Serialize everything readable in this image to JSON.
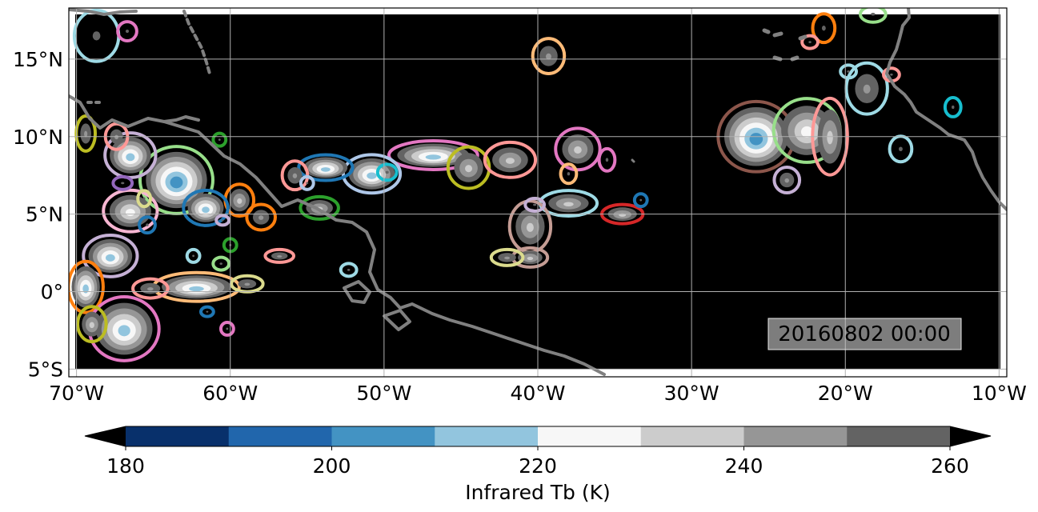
{
  "map": {
    "extent": {
      "lon_min": -70.5,
      "lon_max": -9.5,
      "lat_min": -5.5,
      "lat_max": 18.3
    },
    "lon_ticks": [
      {
        "value": -70,
        "label": "70°W"
      },
      {
        "value": -60,
        "label": "60°W"
      },
      {
        "value": -50,
        "label": "50°W"
      },
      {
        "value": -40,
        "label": "40°W"
      },
      {
        "value": -30,
        "label": "30°W"
      },
      {
        "value": -20,
        "label": "20°W"
      },
      {
        "value": -10,
        "label": "10°W"
      }
    ],
    "lat_ticks": [
      {
        "value": 15,
        "label": "15°N"
      },
      {
        "value": 10,
        "label": "10°N"
      },
      {
        "value": 5,
        "label": "5°N"
      },
      {
        "value": 0,
        "label": "0°"
      },
      {
        "value": -5,
        "label": "5°S"
      }
    ],
    "grid": true,
    "background_color": "#000000",
    "coastline_color": "#808080",
    "timestamp": "20160802 00:00"
  },
  "colorbar": {
    "label": "Infrared Tb (K)",
    "min": 180,
    "max": 260,
    "step": 10,
    "extend": "both",
    "tick_labels": [
      {
        "value": 180,
        "label": "180"
      },
      {
        "value": 200,
        "label": "200"
      },
      {
        "value": 220,
        "label": "220"
      },
      {
        "value": 240,
        "label": "240"
      },
      {
        "value": 260,
        "label": "260"
      }
    ],
    "colors": [
      "#08306b",
      "#2166ac",
      "#4393c3",
      "#92c5de",
      "#f7f7f7",
      "#cccccc",
      "#969696",
      "#636363"
    ],
    "under_color": "#000000",
    "over_color": "#000000"
  },
  "cloud_systems": [
    {
      "lon": -25.8,
      "lat": 10.0,
      "rx": 2.4,
      "ry": 2.2,
      "min_tb": 200,
      "outline": "#8c564b"
    },
    {
      "lon": -22.5,
      "lat": 10.4,
      "rx": 2.1,
      "ry": 2.0,
      "min_tb": 220,
      "outline": "#98df8a"
    },
    {
      "lon": -21.0,
      "lat": 10.0,
      "rx": 1.1,
      "ry": 2.4,
      "min_tb": 230,
      "outline": "#ff9896"
    },
    {
      "lon": -18.6,
      "lat": 13.1,
      "rx": 1.3,
      "ry": 1.6,
      "min_tb": 240,
      "outline": "#9edae5"
    },
    {
      "lon": -23.8,
      "lat": 7.2,
      "rx": 0.8,
      "ry": 0.8,
      "min_tb": 240,
      "outline": "#c5b0d5"
    },
    {
      "lon": -13.0,
      "lat": 11.9,
      "rx": 0.5,
      "ry": 0.6,
      "min_tb": 250,
      "outline": "#17becf"
    },
    {
      "lon": -16.4,
      "lat": 9.2,
      "rx": 0.7,
      "ry": 0.8,
      "min_tb": 250,
      "outline": "#9edae5"
    },
    {
      "lon": -21.4,
      "lat": 17.0,
      "rx": 0.7,
      "ry": 0.9,
      "min_tb": 250,
      "outline": "#ff7f0e"
    },
    {
      "lon": -18.2,
      "lat": 17.9,
      "rx": 0.8,
      "ry": 0.5,
      "min_tb": 250,
      "outline": "#98df8a"
    },
    {
      "lon": -22.3,
      "lat": 16.1,
      "rx": 0.5,
      "ry": 0.4,
      "min_tb": 250,
      "outline": "#ff9896"
    },
    {
      "lon": -19.8,
      "lat": 14.2,
      "rx": 0.5,
      "ry": 0.4,
      "min_tb": 250,
      "outline": "#9edae5"
    },
    {
      "lon": -17.0,
      "lat": 14.0,
      "rx": 0.5,
      "ry": 0.4,
      "min_tb": 250,
      "outline": "#ff9896"
    },
    {
      "lon": -46.8,
      "lat": 8.8,
      "rx": 2.8,
      "ry": 0.9,
      "min_tb": 210,
      "outline": "#e377c2"
    },
    {
      "lon": -50.8,
      "lat": 7.6,
      "rx": 1.8,
      "ry": 1.2,
      "min_tb": 210,
      "outline": "#aec7e8"
    },
    {
      "lon": -53.8,
      "lat": 8.0,
      "rx": 1.7,
      "ry": 0.8,
      "min_tb": 210,
      "outline": "#1f77b4"
    },
    {
      "lon": -44.5,
      "lat": 8.0,
      "rx": 1.3,
      "ry": 1.3,
      "min_tb": 230,
      "outline": "#bcbd22"
    },
    {
      "lon": -41.8,
      "lat": 8.5,
      "rx": 1.6,
      "ry": 1.1,
      "min_tb": 230,
      "outline": "#ff9896"
    },
    {
      "lon": -37.4,
      "lat": 9.2,
      "rx": 1.4,
      "ry": 1.3,
      "min_tb": 230,
      "outline": "#e377c2"
    },
    {
      "lon": -38.0,
      "lat": 5.7,
      "rx": 1.8,
      "ry": 0.8,
      "min_tb": 230,
      "outline": "#9edae5"
    },
    {
      "lon": -34.5,
      "lat": 5.0,
      "rx": 1.3,
      "ry": 0.6,
      "min_tb": 230,
      "outline": "#d62728"
    },
    {
      "lon": -40.5,
      "lat": 4.2,
      "rx": 1.3,
      "ry": 1.6,
      "min_tb": 230,
      "outline": "#c49c94"
    },
    {
      "lon": -40.5,
      "lat": 2.2,
      "rx": 1.1,
      "ry": 0.6,
      "min_tb": 230,
      "outline": "#c49c94"
    },
    {
      "lon": -42.0,
      "lat": 2.2,
      "rx": 1.0,
      "ry": 0.5,
      "min_tb": 240,
      "outline": "#dbdb8d"
    },
    {
      "lon": -54.2,
      "lat": 5.4,
      "rx": 1.2,
      "ry": 0.7,
      "min_tb": 230,
      "outline": "#2ca02c"
    },
    {
      "lon": -55.8,
      "lat": 7.5,
      "rx": 0.8,
      "ry": 0.9,
      "min_tb": 240,
      "outline": "#ff9896"
    },
    {
      "lon": -59.4,
      "lat": 5.9,
      "rx": 0.9,
      "ry": 1.0,
      "min_tb": 230,
      "outline": "#ff7f0e"
    },
    {
      "lon": -58.0,
      "lat": 4.8,
      "rx": 0.9,
      "ry": 0.8,
      "min_tb": 240,
      "outline": "#ff7f0e"
    },
    {
      "lon": -63.5,
      "lat": 7.2,
      "rx": 2.3,
      "ry": 2.1,
      "min_tb": 200,
      "outline": "#98df8a"
    },
    {
      "lon": -61.6,
      "lat": 5.4,
      "rx": 1.4,
      "ry": 1.1,
      "min_tb": 210,
      "outline": "#1f77b4"
    },
    {
      "lon": -66.5,
      "lat": 8.8,
      "rx": 1.6,
      "ry": 1.4,
      "min_tb": 210,
      "outline": "#c5b0d5"
    },
    {
      "lon": -67.4,
      "lat": 10.0,
      "rx": 0.7,
      "ry": 0.8,
      "min_tb": 240,
      "outline": "#ff9896"
    },
    {
      "lon": -69.4,
      "lat": 10.2,
      "rx": 0.6,
      "ry": 1.1,
      "min_tb": 240,
      "outline": "#bcbd22"
    },
    {
      "lon": -66.5,
      "lat": 5.2,
      "rx": 1.7,
      "ry": 1.3,
      "min_tb": 220,
      "outline": "#f7b6d2"
    },
    {
      "lon": -67.8,
      "lat": 2.3,
      "rx": 1.7,
      "ry": 1.3,
      "min_tb": 210,
      "outline": "#c5b0d5"
    },
    {
      "lon": -69.4,
      "lat": 0.3,
      "rx": 1.1,
      "ry": 1.6,
      "min_tb": 210,
      "outline": "#ff7f0e"
    },
    {
      "lon": -66.9,
      "lat": -2.4,
      "rx": 2.2,
      "ry": 2.0,
      "min_tb": 210,
      "outline": "#e377c2"
    },
    {
      "lon": -69.0,
      "lat": -2.1,
      "rx": 0.9,
      "ry": 1.1,
      "min_tb": 230,
      "outline": "#bcbd22"
    },
    {
      "lon": -62.2,
      "lat": 0.3,
      "rx": 2.7,
      "ry": 0.9,
      "min_tb": 210,
      "outline": "#ffbb78"
    },
    {
      "lon": -58.9,
      "lat": 0.5,
      "rx": 1.0,
      "ry": 0.5,
      "min_tb": 240,
      "outline": "#dbdb8d"
    },
    {
      "lon": -65.2,
      "lat": 0.2,
      "rx": 1.1,
      "ry": 0.6,
      "min_tb": 240,
      "outline": "#ff9896"
    },
    {
      "lon": -56.8,
      "lat": 2.3,
      "rx": 0.9,
      "ry": 0.4,
      "min_tb": 240,
      "outline": "#ff9896"
    },
    {
      "lon": -39.3,
      "lat": 15.2,
      "rx": 1.0,
      "ry": 1.1,
      "min_tb": 240,
      "outline": "#ffbb78"
    },
    {
      "lon": -68.7,
      "lat": 16.5,
      "rx": 1.4,
      "ry": 1.6,
      "min_tb": 250,
      "outline": "#9edae5"
    },
    {
      "lon": -66.7,
      "lat": 16.8,
      "rx": 0.6,
      "ry": 0.6,
      "min_tb": 250,
      "outline": "#e377c2"
    },
    {
      "lon": -38.0,
      "lat": 7.6,
      "rx": 0.5,
      "ry": 0.6,
      "min_tb": 250,
      "outline": "#ffbb78"
    },
    {
      "lon": -35.5,
      "lat": 8.5,
      "rx": 0.5,
      "ry": 0.7,
      "min_tb": 250,
      "outline": "#e377c2"
    },
    {
      "lon": -33.3,
      "lat": 5.9,
      "rx": 0.4,
      "ry": 0.4,
      "min_tb": 250,
      "outline": "#1f77b4"
    },
    {
      "lon": -49.8,
      "lat": 7.7,
      "rx": 0.6,
      "ry": 0.5,
      "min_tb": 250,
      "outline": "#17becf"
    },
    {
      "lon": -40.2,
      "lat": 5.6,
      "rx": 0.6,
      "ry": 0.4,
      "min_tb": 250,
      "outline": "#c5b0d5"
    },
    {
      "lon": -52.3,
      "lat": 1.4,
      "rx": 0.5,
      "ry": 0.4,
      "min_tb": 250,
      "outline": "#9edae5"
    },
    {
      "lon": -65.4,
      "lat": 4.3,
      "rx": 0.5,
      "ry": 0.5,
      "min_tb": 250,
      "outline": "#1f77b4"
    },
    {
      "lon": -67.0,
      "lat": 7.0,
      "rx": 0.6,
      "ry": 0.4,
      "min_tb": 250,
      "outline": "#9467bd"
    },
    {
      "lon": -65.6,
      "lat": 6.0,
      "rx": 0.4,
      "ry": 0.5,
      "min_tb": 250,
      "outline": "#dbdb8d"
    },
    {
      "lon": -60.7,
      "lat": 9.8,
      "rx": 0.4,
      "ry": 0.4,
      "min_tb": 250,
      "outline": "#2ca02c"
    },
    {
      "lon": -60.0,
      "lat": 3.0,
      "rx": 0.4,
      "ry": 0.4,
      "min_tb": 250,
      "outline": "#2ca02c"
    },
    {
      "lon": -60.6,
      "lat": 1.8,
      "rx": 0.5,
      "ry": 0.4,
      "min_tb": 250,
      "outline": "#98df8a"
    },
    {
      "lon": -62.4,
      "lat": 2.3,
      "rx": 0.4,
      "ry": 0.4,
      "min_tb": 250,
      "outline": "#9edae5"
    },
    {
      "lon": -61.5,
      "lat": -1.3,
      "rx": 0.4,
      "ry": 0.3,
      "min_tb": 250,
      "outline": "#1f77b4"
    },
    {
      "lon": -60.2,
      "lat": -2.4,
      "rx": 0.4,
      "ry": 0.4,
      "min_tb": 250,
      "outline": "#e377c2"
    },
    {
      "lon": -55.0,
      "lat": 7.0,
      "rx": 0.4,
      "ry": 0.4,
      "min_tb": 250,
      "outline": "#aec7e8"
    },
    {
      "lon": -60.5,
      "lat": 4.6,
      "rx": 0.4,
      "ry": 0.3,
      "min_tb": 250,
      "outline": "#c5b0d5"
    }
  ]
}
